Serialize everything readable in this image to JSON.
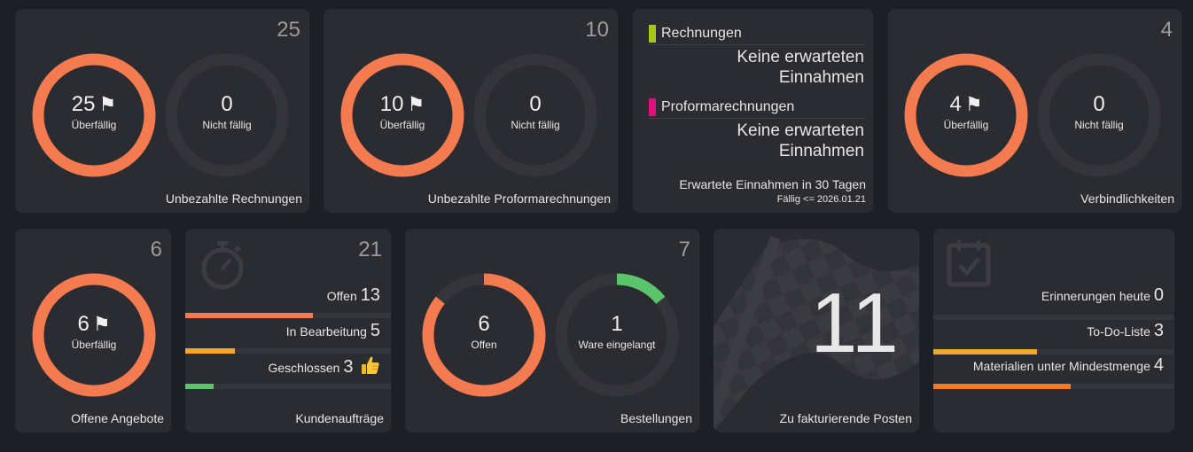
{
  "colors": {
    "background": "#1d1f26",
    "card": "#2b2c31",
    "overdue_ring": "#f47a4f",
    "track": "#34353b",
    "green": "#5cc46a",
    "orange": "#f5a623",
    "dark_orange": "#f47a22",
    "lime": "#a8c71c",
    "magenta": "#e0117f"
  },
  "unpaid_invoices": {
    "count": "25",
    "overdue_value": "25",
    "overdue_label": "Überfällig",
    "overdue_fraction": 1.0,
    "notdue_value": "0",
    "notdue_label": "Nicht fällig",
    "notdue_fraction": 0,
    "footer": "Unbezahlte Rechnungen",
    "flag_icon": "flag-icon"
  },
  "unpaid_proforma": {
    "count": "10",
    "overdue_value": "10",
    "overdue_label": "Überfällig",
    "overdue_fraction": 1.0,
    "notdue_value": "0",
    "notdue_label": "Nicht fällig",
    "notdue_fraction": 0,
    "footer": "Unbezahlte Proformarechnungen"
  },
  "expected_income": {
    "sections": [
      {
        "title": "Rechnungen",
        "color": "#a8c71c",
        "text1": "Keine erwarteten",
        "text2": "Einnahmen"
      },
      {
        "title": "Proformarechnungen",
        "color": "#e0117f",
        "text1": "Keine erwarteten",
        "text2": "Einnahmen"
      }
    ],
    "footer": "Erwartete Einnahmen in 30 Tagen",
    "subfooter": "Fällig <= 2026.01.21"
  },
  "liabilities": {
    "count": "4",
    "overdue_value": "4",
    "overdue_label": "Überfällig",
    "overdue_fraction": 1.0,
    "notdue_value": "0",
    "notdue_label": "Nicht fällig",
    "notdue_fraction": 0,
    "footer": "Verbindlichkeiten"
  },
  "open_quotes": {
    "count": "6",
    "overdue_value": "6",
    "overdue_label": "Überfällig",
    "overdue_fraction": 1.0,
    "footer": "Offene Angebote"
  },
  "customer_orders": {
    "count": "21",
    "icon": "stopwatch-icon",
    "rows": [
      {
        "label": "Offen",
        "value": "13",
        "fraction": 0.62,
        "color": "#f47a4f"
      },
      {
        "label": "In Bearbeitung",
        "value": "5",
        "fraction": 0.24,
        "color": "#f5a623"
      },
      {
        "label": "Geschlossen",
        "value": "3",
        "fraction": 0.14,
        "color": "#5cc46a"
      }
    ],
    "thumb_icon": "thumbs-up-icon",
    "footer": "Kundenaufträge"
  },
  "purchase_orders": {
    "count": "7",
    "open_value": "6",
    "open_label": "Offen",
    "open_fraction": 0.857,
    "received_value": "1",
    "received_label": "Ware eingelangt",
    "received_fraction": 0.143,
    "footer": "Bestellungen"
  },
  "to_invoice": {
    "value": "11",
    "icon": "checkered-flag-icon",
    "footer": "Zu fakturierende Posten"
  },
  "reminders": {
    "icon": "calendar-check-icon",
    "rows": [
      {
        "label": "Erinnerungen heute",
        "value": "0",
        "fraction": 0,
        "color": "#f5a623"
      },
      {
        "label": "To-Do-Liste",
        "value": "3",
        "fraction": 0.43,
        "color": "#f5a623"
      },
      {
        "label": "Materialien unter Mindestmenge",
        "value": "4",
        "fraction": 0.57,
        "color": "#f47a22"
      }
    ]
  }
}
